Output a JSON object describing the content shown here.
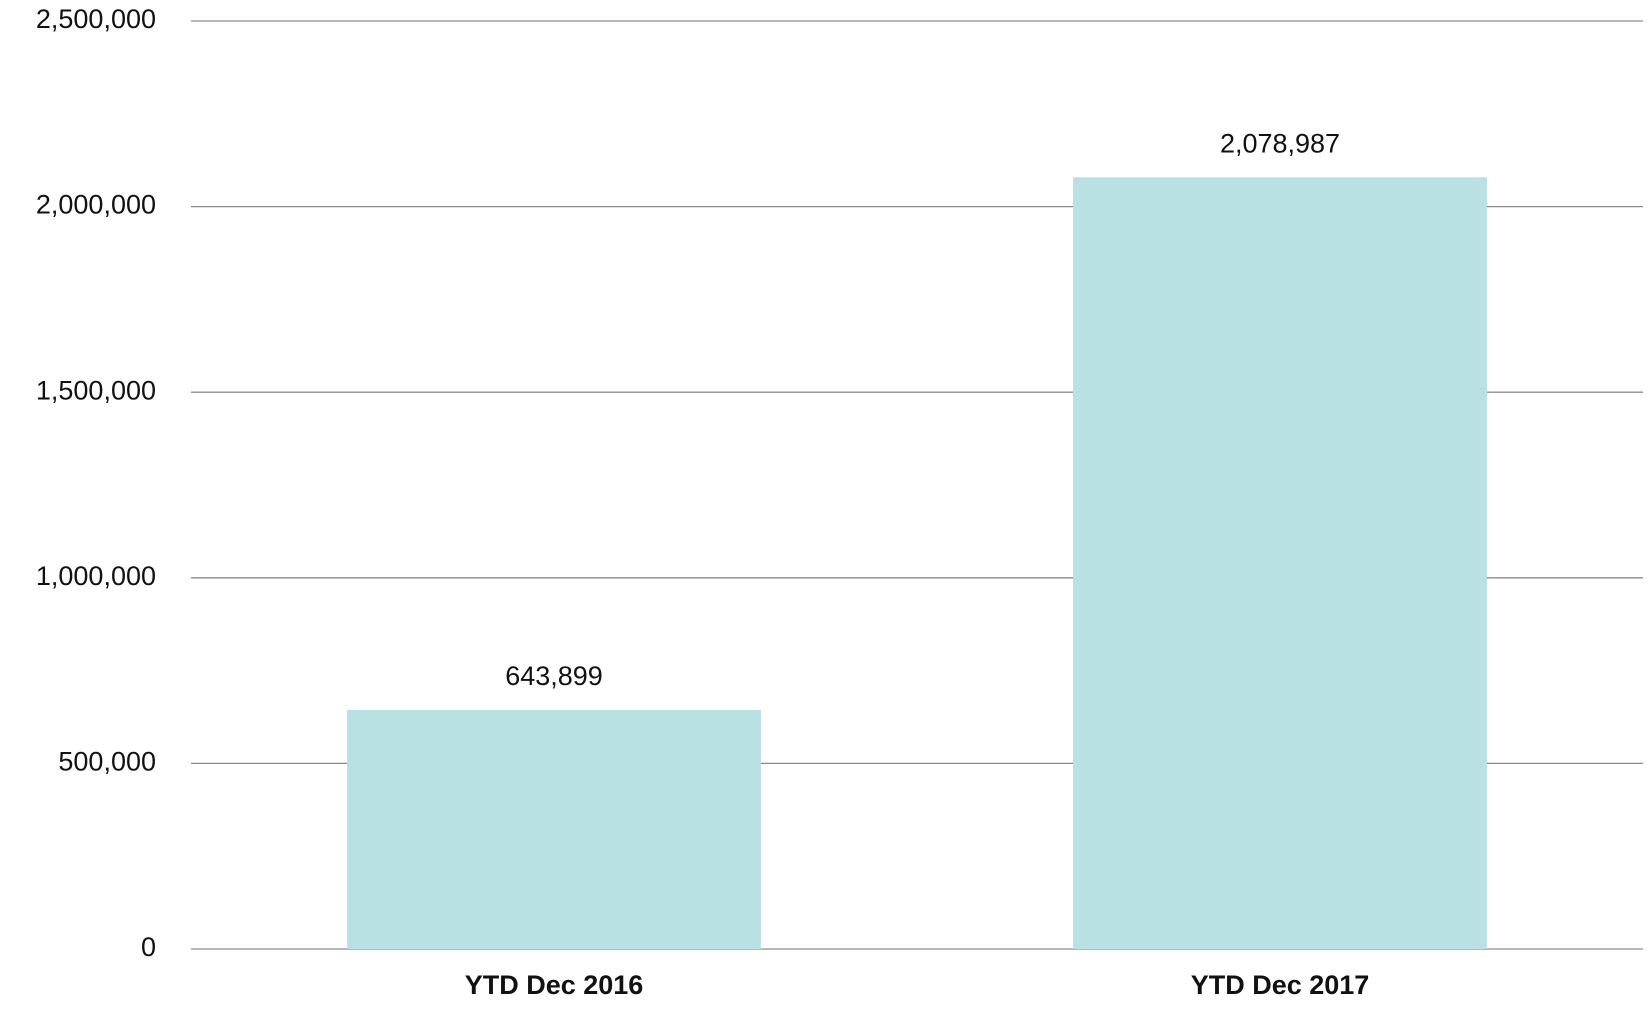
{
  "chart_data": {
    "type": "bar",
    "categories": [
      "YTD Dec 2016",
      "YTD Dec 2017"
    ],
    "values": [
      643899,
      2078987
    ],
    "value_labels": [
      "643,899",
      "2,078,987"
    ],
    "color": "#b9e0e3",
    "ylim": [
      0,
      2500000
    ],
    "yticks": [
      0,
      {
        "value": 500000,
        "label": "500,000"
      },
      {
        "value": 1000000,
        "label": "1,000,000"
      },
      {
        "value": 1500000,
        "label": "1,500,000"
      },
      {
        "value": 2000000,
        "label": "2,000,000"
      },
      {
        "value": 2500000,
        "label": "2,500,000"
      }
    ],
    "grid": true
  }
}
